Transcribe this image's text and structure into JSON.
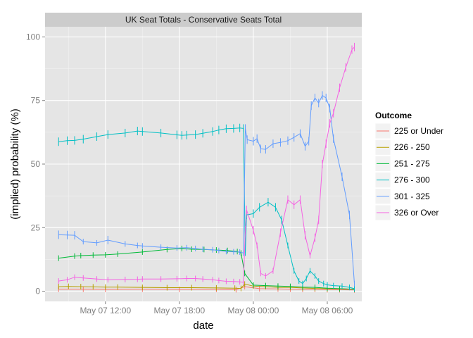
{
  "chart_data": {
    "type": "line",
    "title": "UK Seat Totals - Conservative Seats Total",
    "xlabel": "date",
    "ylabel": "(implied) probability (%)",
    "x_ticks": [
      "May 07 12:00",
      "May 07 18:00",
      "May 08 00:00",
      "May 08 06:00"
    ],
    "x_tick_hours": [
      12,
      18,
      24,
      30
    ],
    "x_range_hours": [
      7.1,
      32.8
    ],
    "y_ticks": [
      "0",
      "25",
      "50",
      "75",
      "100"
    ],
    "y_tick_values": [
      0,
      25,
      50,
      75,
      100
    ],
    "ylim": [
      -4,
      104
    ],
    "legend_title": "Outcome",
    "legend_position": "right",
    "grid": true,
    "series": [
      {
        "name": "225 or Under",
        "color": "#F8766D",
        "x": [
          8.2,
          10.2,
          12.0,
          15.0,
          18.0,
          21.0,
          22.6,
          23.3,
          24.5,
          26.0,
          27.0,
          28.0,
          29.0,
          30.0,
          31.0,
          32.2
        ],
        "y": [
          0.8,
          0.8,
          0.7,
          0.8,
          0.7,
          0.7,
          0.6,
          1.8,
          1.0,
          0.9,
          0.8,
          0.7,
          0.7,
          0.6,
          0.6,
          0.5
        ]
      },
      {
        "name": "226 - 250",
        "color": "#B79F00",
        "x": [
          8.2,
          9.0,
          10.0,
          11.0,
          12.0,
          13.0,
          15.0,
          17.0,
          19.0,
          21.0,
          22.5,
          23.0,
          23.3,
          24.0,
          25.0,
          26.0,
          27.0,
          28.0,
          29.0,
          30.0,
          31.0,
          32.2
        ],
        "y": [
          1.8,
          1.9,
          1.8,
          1.7,
          1.6,
          1.6,
          1.5,
          1.4,
          1.4,
          1.3,
          1.2,
          1.1,
          2.8,
          2.0,
          1.8,
          1.5,
          1.5,
          1.3,
          1.1,
          1.0,
          0.9,
          0.8
        ]
      },
      {
        "name": "251 - 275",
        "color": "#00BA38",
        "x": [
          8.2,
          9.5,
          10.0,
          11.0,
          12.0,
          13.0,
          15.0,
          17.0,
          18.2,
          19.0,
          20.0,
          21.0,
          21.9,
          22.7,
          23.0,
          23.3,
          24.0,
          25.0,
          26.0,
          27.0,
          28.0,
          29.0,
          30.0,
          31.0,
          32.2
        ],
        "y": [
          13.0,
          13.8,
          14.0,
          14.2,
          14.3,
          14.6,
          15.4,
          16.4,
          16.8,
          16.5,
          16.4,
          16.2,
          16.0,
          15.6,
          15.0,
          7.0,
          2.4,
          2.2,
          2.0,
          1.9,
          1.6,
          1.5,
          1.2,
          1.0,
          0.8
        ]
      },
      {
        "name": "276 - 300",
        "color": "#00BFC4",
        "x": [
          8.2,
          8.9,
          9.5,
          10.2,
          11.3,
          12.2,
          13.6,
          14.6,
          15.0,
          16.5,
          17.8,
          18.2,
          18.6,
          19.3,
          19.9,
          20.7,
          21.2,
          21.8,
          22.4,
          22.9,
          23.2,
          23.35,
          23.45,
          24.0,
          24.5,
          25.2,
          25.8,
          26.3,
          26.8,
          27.3,
          27.7,
          28.0,
          28.3,
          28.6,
          29.0,
          29.3,
          29.7,
          30.0,
          30.5,
          31.2,
          31.8,
          32.2
        ],
        "y": [
          58.8,
          59.2,
          59.3,
          59.8,
          60.8,
          61.6,
          62.2,
          63.0,
          62.8,
          62.2,
          61.5,
          61.3,
          61.4,
          61.6,
          62.1,
          62.8,
          63.4,
          63.9,
          64.0,
          64.2,
          64.0,
          15.0,
          30.0,
          30.5,
          33.0,
          35.0,
          33.0,
          28.0,
          18.0,
          8.0,
          4.0,
          3.0,
          5.0,
          8.0,
          6.0,
          4.0,
          3.0,
          2.5,
          2.2,
          2.0,
          1.5,
          1.0
        ]
      },
      {
        "name": "301 - 325",
        "color": "#619CFF",
        "x": [
          8.2,
          8.9,
          9.5,
          10.2,
          11.3,
          12.2,
          13.6,
          14.6,
          15.0,
          16.5,
          17.8,
          18.6,
          19.3,
          19.9,
          20.7,
          21.2,
          21.8,
          22.4,
          22.9,
          23.2,
          23.35,
          23.5,
          24.0,
          24.3,
          24.6,
          25.0,
          25.6,
          26.2,
          26.8,
          27.3,
          27.8,
          28.2,
          28.5,
          28.7,
          29.0,
          29.3,
          29.6,
          29.9,
          30.2,
          30.5,
          31.2,
          31.8,
          32.2
        ],
        "y": [
          22.2,
          22.1,
          22.0,
          19.5,
          19.0,
          20.1,
          18.6,
          18.0,
          17.8,
          17.3,
          17.0,
          17.1,
          16.8,
          16.5,
          16.3,
          16.0,
          15.6,
          15.5,
          15.4,
          15.0,
          64.0,
          59.6,
          59.0,
          60.0,
          56.0,
          55.8,
          58.0,
          58.5,
          59.2,
          60.5,
          62.0,
          57.0,
          59.0,
          73.0,
          76.0,
          74.0,
          77.0,
          76.0,
          72.0,
          60.0,
          45.0,
          30.0,
          3.0
        ]
      },
      {
        "name": "326 or Over",
        "color": "#F564E3",
        "x": [
          8.2,
          8.9,
          9.5,
          10.2,
          11.3,
          12.2,
          13.6,
          14.6,
          15.0,
          16.5,
          17.8,
          18.6,
          19.3,
          19.9,
          20.7,
          21.2,
          21.8,
          22.4,
          22.9,
          23.2,
          23.35,
          23.45,
          24.0,
          24.3,
          24.6,
          25.0,
          25.6,
          26.2,
          26.8,
          27.3,
          27.8,
          28.2,
          28.6,
          29.0,
          29.3,
          29.6,
          29.9,
          30.2,
          30.5,
          31.0,
          31.5,
          32.0,
          32.2
        ],
        "y": [
          4.0,
          4.5,
          5.5,
          5.2,
          4.8,
          4.5,
          4.6,
          4.7,
          4.8,
          4.8,
          4.9,
          5.0,
          5.0,
          4.8,
          4.5,
          4.2,
          3.9,
          3.8,
          3.7,
          3.5,
          24.0,
          32.0,
          24.0,
          18.0,
          7.0,
          6.0,
          8.0,
          23.0,
          36.0,
          34.0,
          36.0,
          22.0,
          14.0,
          21.0,
          28.0,
          50.0,
          58.0,
          66.0,
          70.0,
          80.0,
          88.0,
          95.0,
          96.0
        ]
      }
    ]
  }
}
